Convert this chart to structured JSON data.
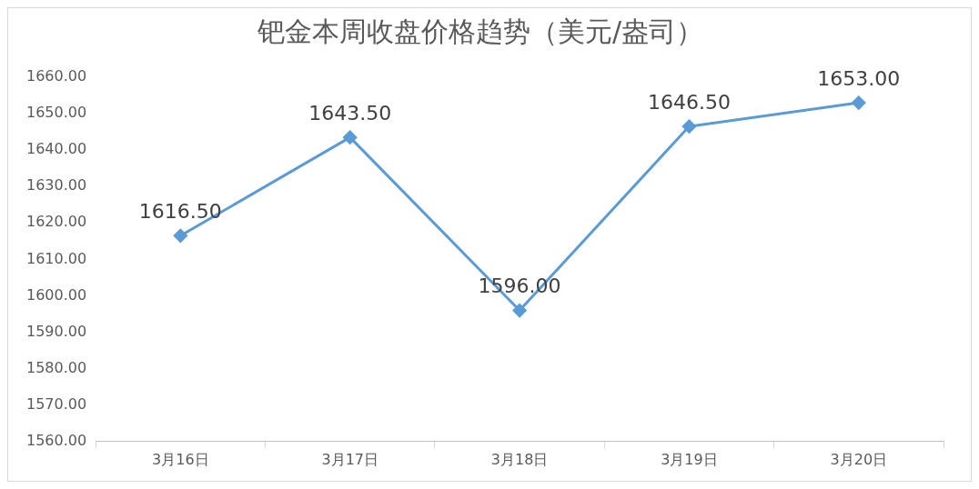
{
  "chart_data": {
    "type": "line",
    "title": "钯金本周收盘价格趋势（美元/盎司）",
    "categories": [
      "3月16日",
      "3月17日",
      "3月18日",
      "3月19日",
      "3月20日"
    ],
    "series": [
      {
        "color": "#5b9bd5",
        "values": [
          1616.5,
          1643.5,
          1596,
          1646.5,
          1653
        ],
        "value_labels": [
          "1616.50",
          "1643.50",
          "1596.00",
          "1646.50",
          "1653.00"
        ]
      }
    ],
    "ylim": [
      1560,
      1660
    ],
    "yticks": [
      {
        "value": 1560,
        "label": "1560.00"
      },
      {
        "value": 1570,
        "label": "1570.00"
      },
      {
        "value": 1580,
        "label": "1580.00"
      },
      {
        "value": 1590,
        "label": "1590.00"
      },
      {
        "value": 1600,
        "label": "1600.00"
      },
      {
        "value": 1610,
        "label": "1610.00"
      },
      {
        "value": 1620,
        "label": "1620.00"
      },
      {
        "value": 1630,
        "label": "1630.00"
      },
      {
        "value": 1640,
        "label": "1640.00"
      },
      {
        "value": 1650,
        "label": "1650.00"
      },
      {
        "value": 1660,
        "label": "1660.00"
      }
    ],
    "grid": false,
    "legend": false,
    "marker": "diamond",
    "line_style": "solid"
  }
}
